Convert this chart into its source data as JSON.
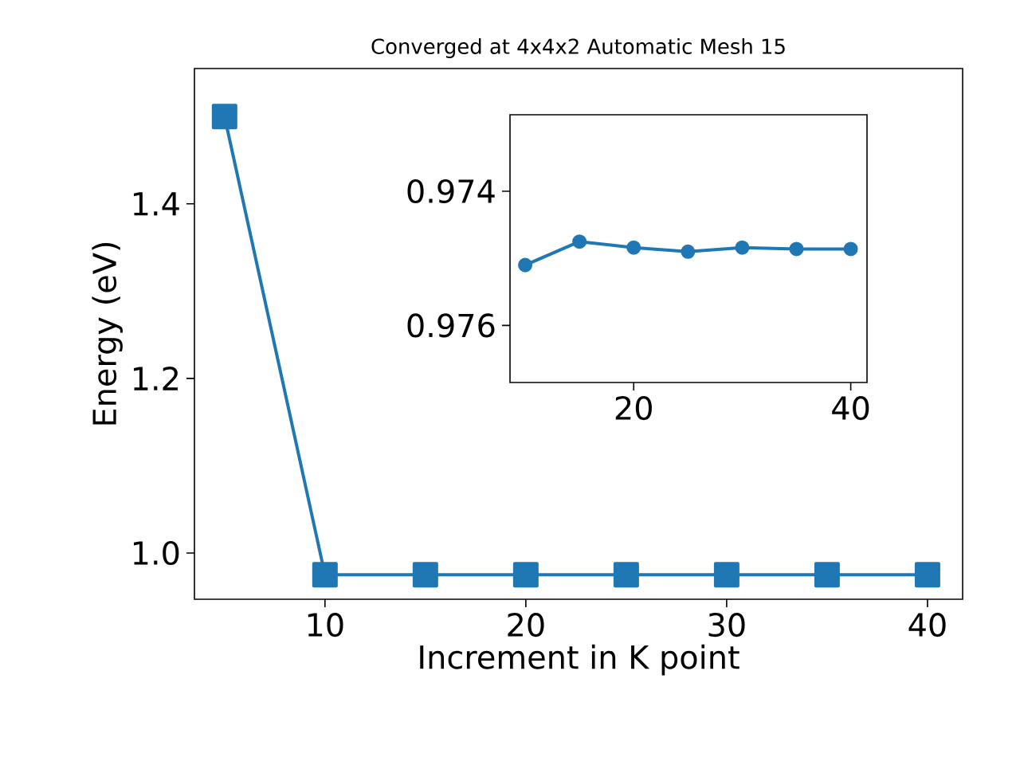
{
  "chart_data": [
    {
      "type": "line",
      "title": "Converged at 4x4x2 Automatic Mesh 15",
      "xlabel": "Increment in K point",
      "ylabel": "Energy (eV)",
      "color": "#1f77b4",
      "marker": "square",
      "line_style": "solid",
      "x": [
        5,
        10,
        15,
        20,
        25,
        30,
        35,
        40
      ],
      "values": [
        1.5,
        0.975,
        0.975,
        0.975,
        0.975,
        0.975,
        0.975,
        0.975
      ],
      "xlim": [
        3.5,
        41.75
      ],
      "ylim": [
        0.947,
        1.555
      ],
      "xticks": [
        10,
        20,
        30,
        40
      ],
      "yticks": [
        {
          "value": 1.0,
          "label": "1.0"
        },
        {
          "value": 1.2,
          "label": "1.2"
        },
        {
          "value": 1.4,
          "label": "1.4"
        }
      ]
    },
    {
      "type": "line",
      "color": "#1f77b4",
      "marker": "circle",
      "line_style": "solid",
      "x": [
        10,
        15,
        20,
        25,
        30,
        35,
        40
      ],
      "values": [
        0.9751,
        0.97475,
        0.97484,
        0.9749,
        0.97484,
        0.97486,
        0.97486
      ],
      "xlim": [
        8.6,
        41.5
      ],
      "ylim": [
        0.97685,
        0.97286
      ],
      "xticks": [
        20,
        40
      ],
      "yticks": [
        0.974,
        0.976
      ]
    }
  ]
}
